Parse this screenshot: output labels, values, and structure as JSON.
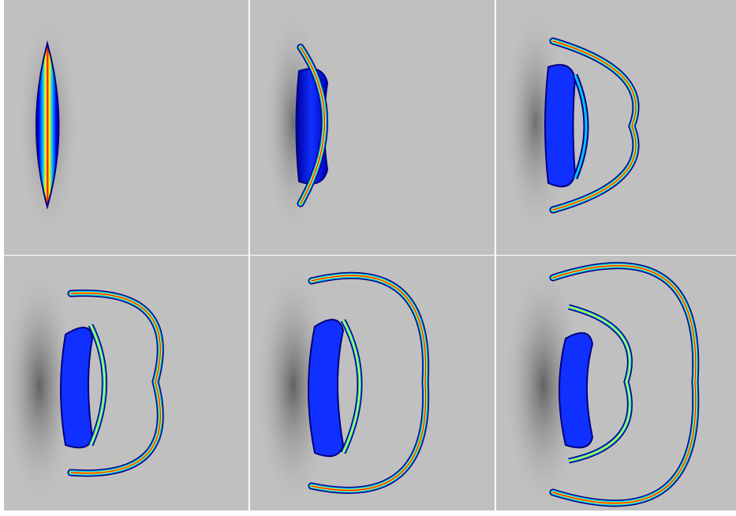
{
  "figure": {
    "panel_count": 6,
    "rows": 2,
    "columns": 3,
    "background_color": "#c0c0c0",
    "separator_color": "#ffffff",
    "colormap": [
      "#00007f",
      "#0000ff",
      "#00c8ff",
      "#ffff00",
      "#ff0000"
    ]
  }
}
